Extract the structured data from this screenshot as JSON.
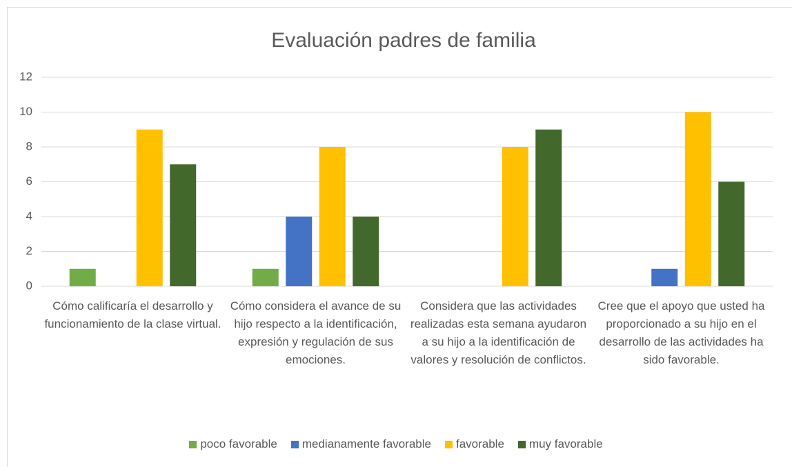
{
  "chart_data": {
    "type": "bar",
    "title": "Evaluación padres de familia",
    "categories": [
      "Cómo calificaría el desarrollo y funcionamiento de la clase virtual.",
      "Cómo considera el avance de su hijo respecto a la identificación, expresión y regulación de sus emociones.",
      "Considera que las actividades realizadas esta semana ayudaron a su hijo a la identificación de valores y resolución de conflictos.",
      "Cree que el apoyo que usted ha proporcionado a su hijo en el desarrollo de las actividades ha sido favorable."
    ],
    "series": [
      {
        "name": "poco favorable",
        "color": "#70ad47",
        "values": [
          1,
          1,
          0,
          0
        ]
      },
      {
        "name": "medianamente favorable",
        "color": "#4472c4",
        "values": [
          0,
          4,
          0,
          1
        ]
      },
      {
        "name": "favorable",
        "color": "#ffc000",
        "values": [
          9,
          8,
          8,
          10
        ]
      },
      {
        "name": "muy favorable",
        "color": "#43682b",
        "values": [
          7,
          4,
          9,
          6
        ]
      }
    ],
    "ylim": [
      0,
      12
    ],
    "yticks": [
      0,
      2,
      4,
      6,
      8,
      10,
      12
    ],
    "grid": true,
    "legend": "bottom"
  }
}
